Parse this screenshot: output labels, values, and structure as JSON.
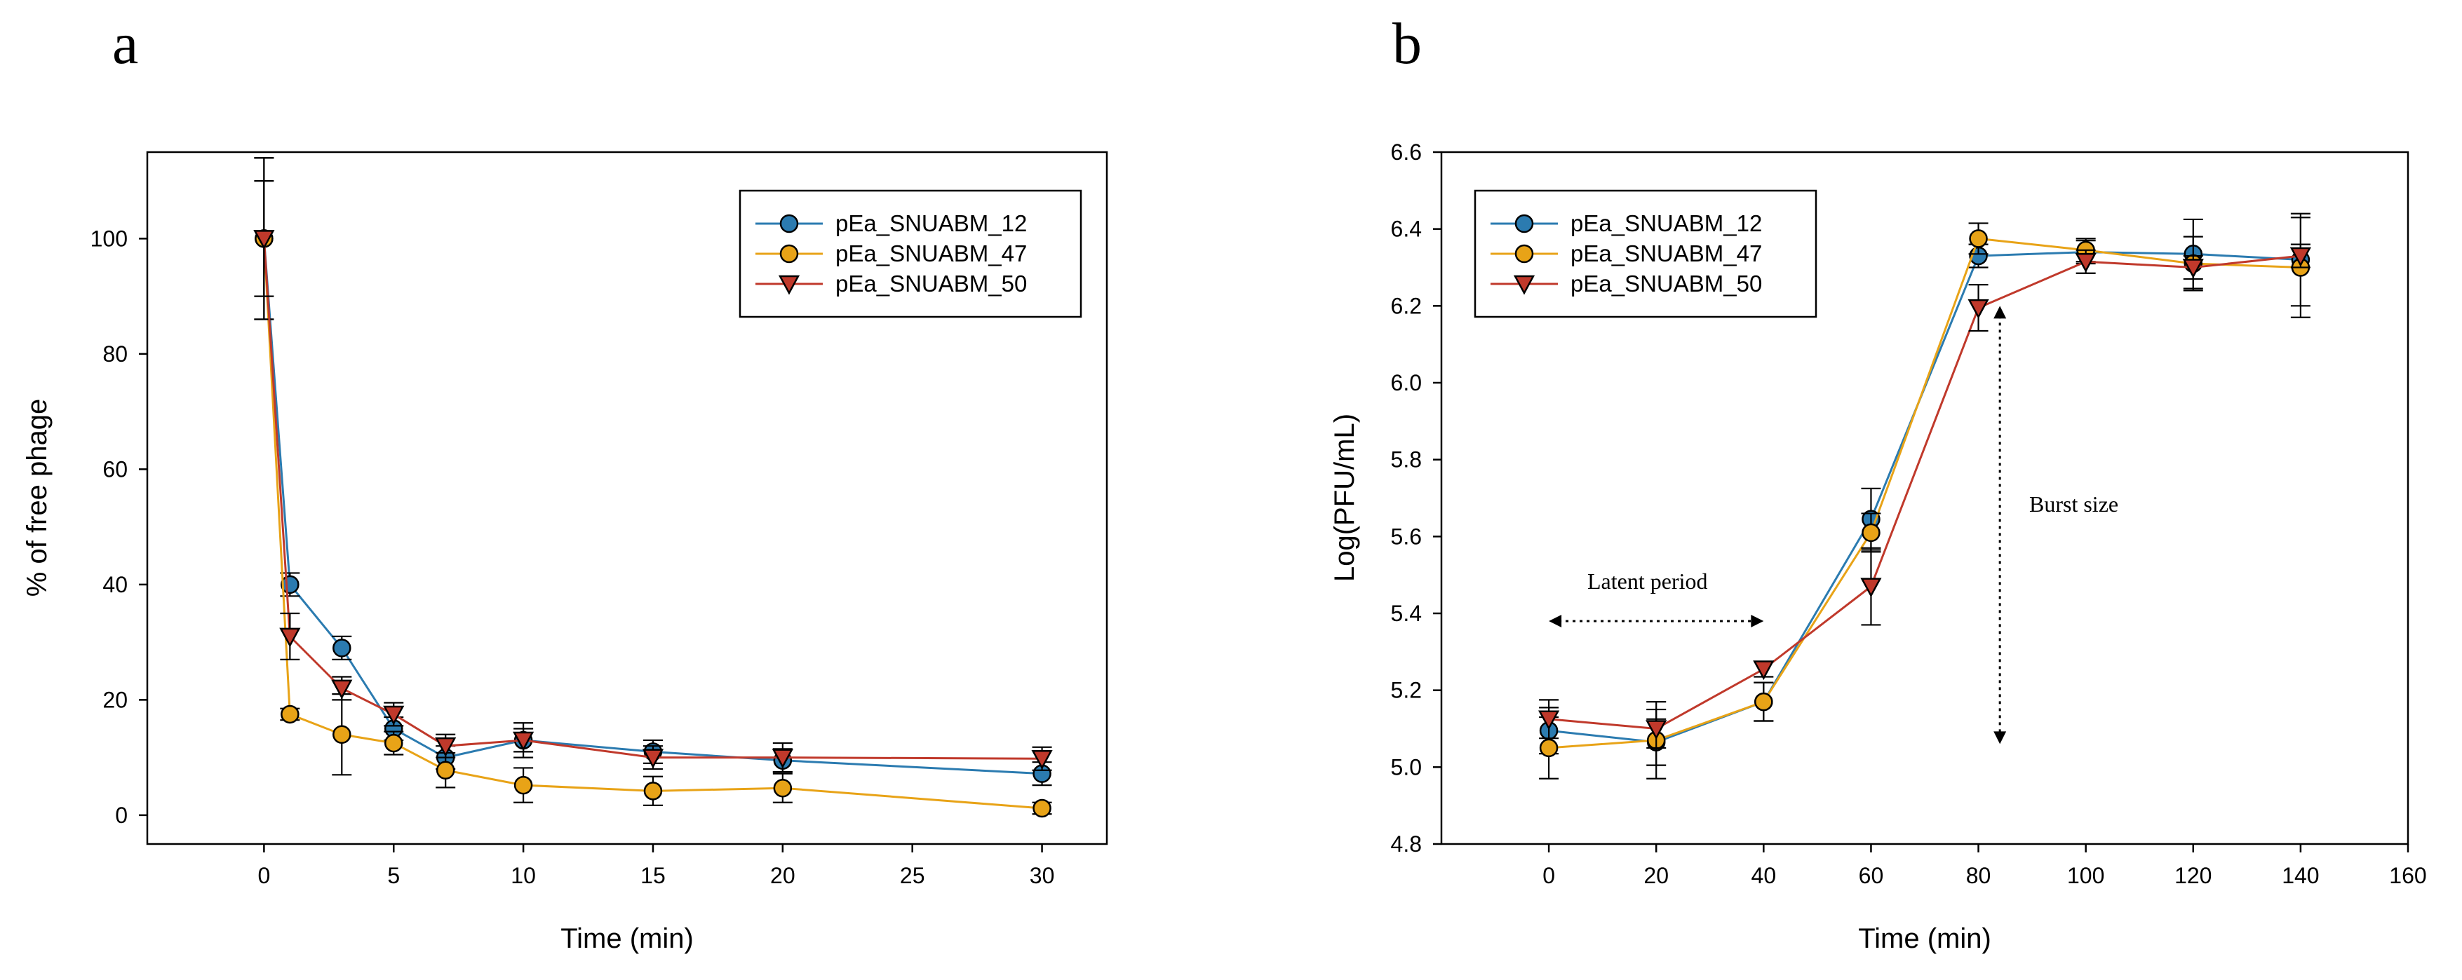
{
  "chart_data": [
    {
      "panel": "a",
      "type": "line",
      "title": "",
      "xlabel": "Time (min)",
      "ylabel": "% of free phage",
      "xlim": [
        -4.5,
        32.5
      ],
      "ylim": [
        -5,
        115
      ],
      "xticks": [
        0,
        5,
        10,
        15,
        20,
        25,
        30
      ],
      "yticks": [
        0,
        20,
        40,
        60,
        80,
        100
      ],
      "legend_position": "top-right",
      "series": [
        {
          "name": "pEa_SNUABM_12",
          "color": "#2b7bb0",
          "marker": "circle",
          "x": [
            0,
            1,
            3,
            5,
            7,
            10,
            15,
            20,
            30
          ],
          "y": [
            100,
            40,
            29,
            15,
            10,
            13,
            11,
            9.5,
            7.2
          ],
          "err": [
            14,
            2,
            2,
            2,
            2,
            2,
            2,
            2,
            2
          ]
        },
        {
          "name": "pEa_SNUABM_47",
          "color": "#e8a317",
          "marker": "circle",
          "x": [
            0,
            1,
            3,
            5,
            7,
            10,
            15,
            20,
            30
          ],
          "y": [
            100,
            17.5,
            14,
            12.5,
            7.8,
            5.2,
            4.2,
            4.7,
            1.2
          ],
          "err": [
            14,
            1,
            7,
            2,
            3,
            3,
            2.5,
            2.5,
            1
          ]
        },
        {
          "name": "pEa_SNUABM_50",
          "color": "#c0392b",
          "marker": "triangle-down",
          "x": [
            0,
            1,
            3,
            5,
            7,
            10,
            15,
            20,
            30
          ],
          "y": [
            100,
            31,
            22,
            17.5,
            12,
            13,
            10,
            10,
            9.8
          ],
          "err": [
            10,
            4,
            2,
            2,
            2,
            3,
            2,
            2.5,
            2
          ]
        }
      ]
    },
    {
      "panel": "b",
      "type": "line",
      "title": "",
      "xlabel": "Time (min)",
      "ylabel": "Log(PFU/mL)",
      "xlim": [
        -20,
        160
      ],
      "ylim": [
        4.8,
        6.6
      ],
      "xticks": [
        0,
        20,
        40,
        60,
        80,
        100,
        120,
        140,
        160
      ],
      "yticks": [
        4.8,
        5.0,
        5.2,
        5.4,
        5.6,
        5.8,
        6.0,
        6.2,
        6.4,
        6.6
      ],
      "legend_position": "top-left",
      "annotations": [
        {
          "text": "Latent period",
          "arrow": "horizontal",
          "x_range": [
            0,
            40
          ],
          "y": 5.38
        },
        {
          "text": "Burst size",
          "arrow": "vertical",
          "x": 84,
          "y_range": [
            5.06,
            6.2
          ]
        }
      ],
      "series": [
        {
          "name": "pEa_SNUABM_12",
          "color": "#2b7bb0",
          "marker": "circle",
          "x": [
            0,
            20,
            40,
            60,
            80,
            100,
            120,
            140
          ],
          "y": [
            5.095,
            5.065,
            5.17,
            5.645,
            6.33,
            6.34,
            6.335,
            6.32
          ],
          "err": [
            0.06,
            0.06,
            0.05,
            0.08,
            0.03,
            0.03,
            0.09,
            0.12
          ]
        },
        {
          "name": "pEa_SNUABM_47",
          "color": "#e8a317",
          "marker": "circle",
          "x": [
            0,
            20,
            40,
            60,
            80,
            100,
            120,
            140
          ],
          "y": [
            5.05,
            5.07,
            5.17,
            5.61,
            6.375,
            6.345,
            6.31,
            6.3
          ],
          "err": [
            0.08,
            0.1,
            0.05,
            0.05,
            0.04,
            0.03,
            0.07,
            0.13
          ]
        },
        {
          "name": "pEa_SNUABM_50",
          "color": "#c0392b",
          "marker": "triangle-down",
          "x": [
            0,
            20,
            40,
            60,
            80,
            100,
            120,
            140
          ],
          "y": [
            5.125,
            5.1,
            5.255,
            5.47,
            6.195,
            6.315,
            6.3,
            6.33
          ],
          "err": [
            0.05,
            0.05,
            0.02,
            0.1,
            0.06,
            0.03,
            0.03,
            0.03
          ]
        }
      ]
    }
  ]
}
